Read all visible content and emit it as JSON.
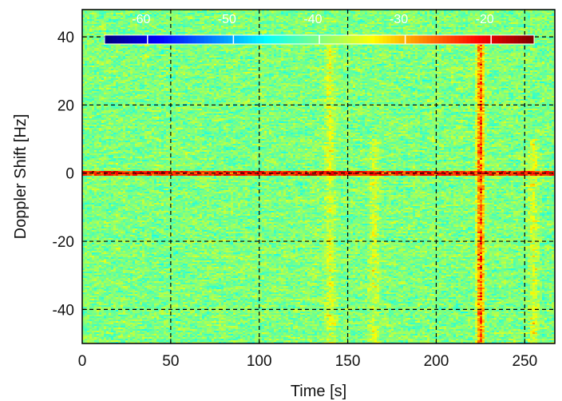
{
  "chart_data": {
    "type": "heatmap",
    "title": "",
    "xlabel": "Time [s]",
    "ylabel": "Doppler Shift [Hz]",
    "xlim": [
      0,
      267
    ],
    "ylim": [
      -50,
      48
    ],
    "x_ticks": [
      0,
      50,
      100,
      150,
      200,
      250
    ],
    "y_ticks": [
      -40,
      -20,
      0,
      20,
      40
    ],
    "grid": true,
    "grid_style": "dashed",
    "colormap": "jet",
    "colorbar": {
      "placement": "top-inside",
      "ticks": [
        "-60",
        "-50",
        "-40",
        "-30",
        "-20"
      ],
      "range": [
        -65,
        -15
      ]
    },
    "features": [
      {
        "kind": "horizontal-line",
        "doppler": 0,
        "level": "-20",
        "x_range": [
          0,
          267
        ]
      },
      {
        "kind": "vertical-line",
        "time": 225,
        "level": "-20",
        "y_range": [
          -50,
          40
        ]
      },
      {
        "kind": "vertical-streak",
        "time": 165,
        "level": "-30",
        "y_range": [
          -50,
          10
        ]
      },
      {
        "kind": "vertical-streak",
        "time": 255,
        "level": "-30",
        "y_range": [
          -50,
          10
        ]
      },
      {
        "kind": "vertical-streak",
        "time": 140,
        "level": "-30",
        "y_range": [
          -50,
          40
        ]
      }
    ],
    "background_level": "-40"
  }
}
